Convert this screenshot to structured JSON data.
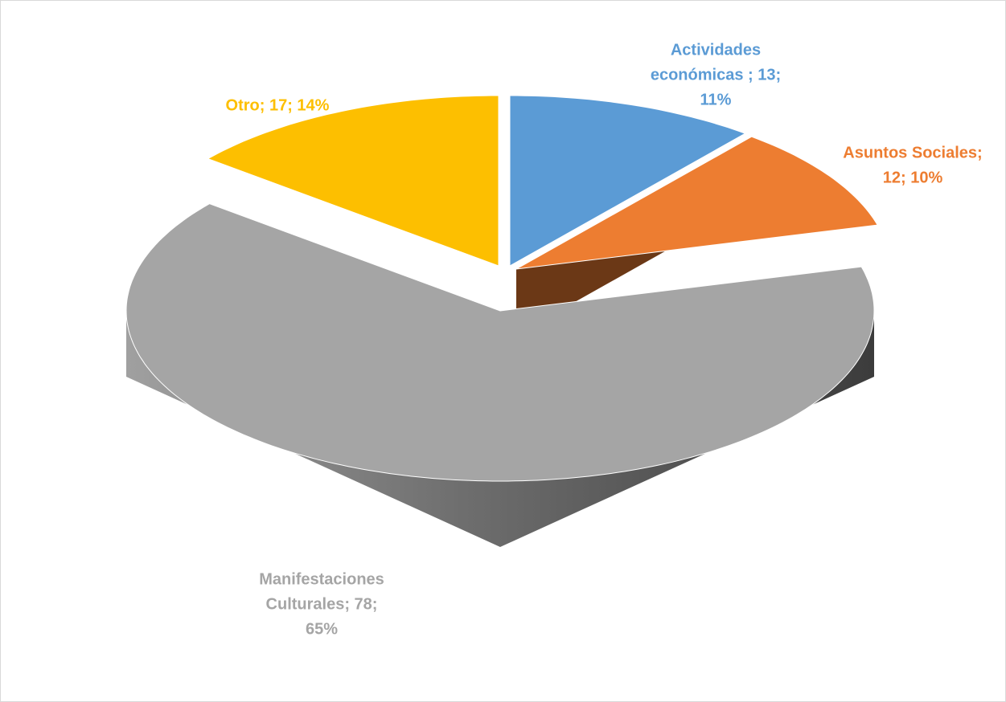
{
  "chart_data": {
    "type": "pie3d",
    "values": [
      13,
      12,
      78,
      17
    ],
    "value_labels": [
      [
        "Actividades",
        "económicas ; 13;",
        "11%"
      ],
      [
        "Asuntos Sociales;",
        "12; 10%"
      ],
      [
        "Manifestaciones",
        "Culturales; 78;",
        "65%"
      ],
      [
        "Otro; 17; 14%"
      ]
    ],
    "colors": [
      "#5b9bd5",
      "#ed7d31",
      "#a5a5a5",
      "#fdbf00"
    ]
  }
}
